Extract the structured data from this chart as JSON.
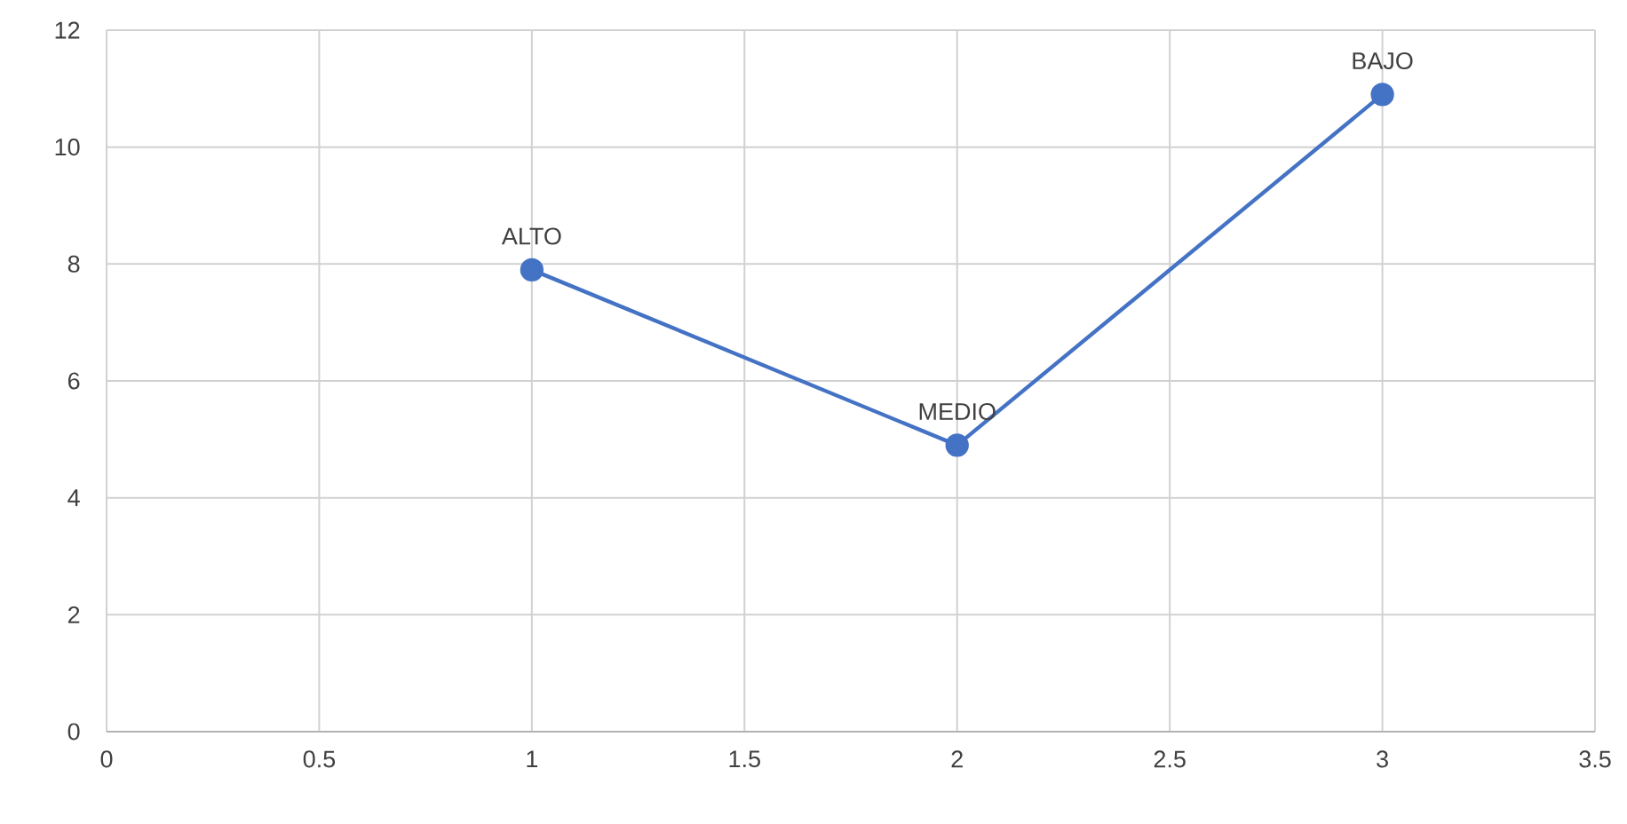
{
  "chart_data": {
    "type": "line",
    "x": [
      1,
      2,
      3
    ],
    "series": [
      {
        "color": "#4472c4",
        "values": [
          7.9,
          4.9,
          10.9
        ]
      }
    ],
    "xlim": [
      0,
      3.5
    ],
    "xticks": [
      0,
      0.5,
      1,
      1.5,
      2,
      2.5,
      3,
      3.5
    ],
    "ylim": [
      0,
      12
    ],
    "yticks": [
      0,
      2,
      4,
      6,
      8,
      10,
      12
    ],
    "grid": true,
    "marker": "circle",
    "line_style": "solid",
    "annotations": [
      {
        "text": "ALTO",
        "x": 1,
        "y": 7.9
      },
      {
        "text": "MEDIO",
        "x": 2,
        "y": 4.9
      },
      {
        "text": "BAJO",
        "x": 3,
        "y": 10.9
      }
    ]
  }
}
